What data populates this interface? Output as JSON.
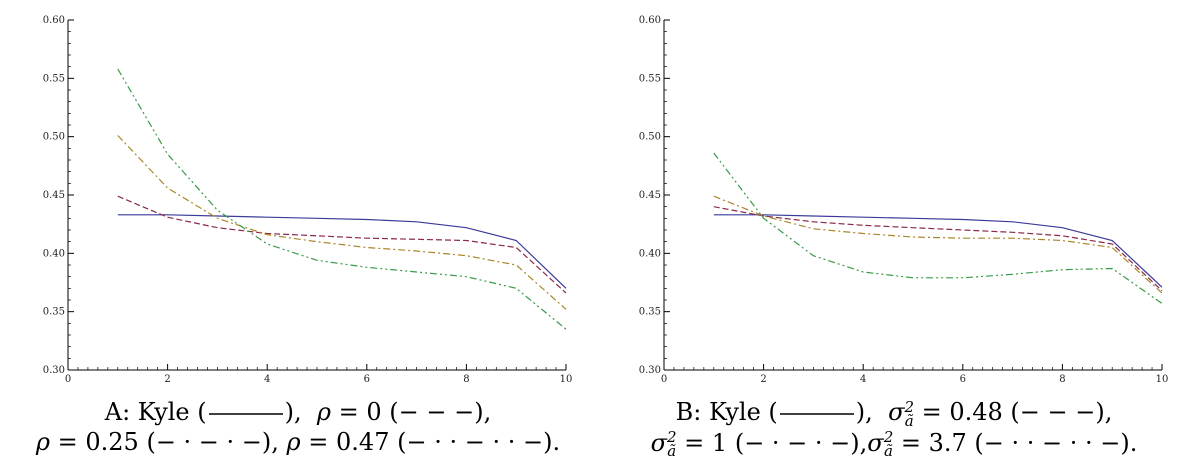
{
  "chart_data": [
    {
      "type": "line",
      "panel": "A",
      "xlim": [
        0,
        10
      ],
      "ylim": [
        0.3,
        0.6
      ],
      "xticks": [
        0,
        2,
        4,
        6,
        8,
        10
      ],
      "yticks": [
        0.3,
        0.35,
        0.4,
        0.45,
        0.5,
        0.55,
        0.6
      ],
      "xtick_labels": [
        "0",
        "2",
        "4",
        "6",
        "8",
        "10"
      ],
      "ytick_labels": [
        "0.30",
        "0.35",
        "0.40",
        "0.45",
        "0.50",
        "0.55",
        "0.60"
      ],
      "x": [
        1,
        2,
        3,
        4,
        5,
        6,
        7,
        8,
        9,
        10
      ],
      "series": [
        {
          "style": "solid",
          "color": "#3b3b9a",
          "values": [
            0.433,
            0.433,
            0.432,
            0.431,
            0.43,
            0.429,
            0.427,
            0.422,
            0.411,
            0.37
          ]
        },
        {
          "style": "dashed",
          "color": "#8b2a4a",
          "values": [
            0.449,
            0.431,
            0.422,
            0.417,
            0.415,
            0.413,
            0.412,
            0.411,
            0.405,
            0.366
          ]
        },
        {
          "style": "dashdot",
          "color": "#a8862a",
          "values": [
            0.501,
            0.456,
            0.43,
            0.416,
            0.41,
            0.405,
            0.402,
            0.398,
            0.39,
            0.352
          ]
        },
        {
          "style": "dashdotdot",
          "color": "#3a9a4a",
          "values": [
            0.558,
            0.485,
            0.437,
            0.408,
            0.394,
            0.388,
            0.384,
            0.38,
            0.37,
            0.335
          ]
        }
      ],
      "caption": {
        "prefix": "A: Kyle (",
        "kyle_close": "),",
        "rho_symbol": "ρ",
        "s1_value": " = 0 (",
        "s1_pattern": "− − −",
        "s1_close": "),",
        "s2_value": " = 0.25 (",
        "s2_pattern": "− · − · −",
        "s2_close": "), ",
        "s3_value": " = 0.47 (",
        "s3_pattern": "− · · − · · −",
        "s3_close": ")."
      }
    },
    {
      "type": "line",
      "panel": "B",
      "xlim": [
        0,
        10
      ],
      "ylim": [
        0.3,
        0.6
      ],
      "xticks": [
        0,
        2,
        4,
        6,
        8,
        10
      ],
      "yticks": [
        0.3,
        0.35,
        0.4,
        0.45,
        0.5,
        0.55,
        0.6
      ],
      "xtick_labels": [
        "0",
        "2",
        "4",
        "6",
        "8",
        "10"
      ],
      "ytick_labels": [
        "0.30",
        "0.35",
        "0.40",
        "0.45",
        "0.50",
        "0.55",
        "0.60"
      ],
      "x": [
        1,
        2,
        3,
        4,
        5,
        6,
        7,
        8,
        9,
        10
      ],
      "series": [
        {
          "style": "solid",
          "color": "#3b3b9a",
          "values": [
            0.433,
            0.433,
            0.432,
            0.431,
            0.43,
            0.429,
            0.427,
            0.422,
            0.411,
            0.371
          ]
        },
        {
          "style": "dashed",
          "color": "#8b2a4a",
          "values": [
            0.44,
            0.432,
            0.427,
            0.424,
            0.422,
            0.42,
            0.418,
            0.415,
            0.408,
            0.368
          ]
        },
        {
          "style": "dashdot",
          "color": "#a8862a",
          "values": [
            0.449,
            0.432,
            0.421,
            0.417,
            0.414,
            0.413,
            0.413,
            0.411,
            0.405,
            0.366
          ]
        },
        {
          "style": "dashdotdot",
          "color": "#3a9a4a",
          "values": [
            0.486,
            0.43,
            0.398,
            0.384,
            0.379,
            0.379,
            0.382,
            0.386,
            0.387,
            0.357
          ]
        }
      ],
      "caption": {
        "prefix": "B: Kyle (",
        "kyle_close": "),",
        "sigma_symbol": "σ",
        "sigma_sup": "2",
        "sigma_sub": "ã",
        "s1_value": " = 0.48 (",
        "s1_pattern": "− − −",
        "s1_close": "),",
        "s2_value": " = 1 (",
        "s2_pattern": "− · − · −",
        "s2_close": "),",
        "s3_value": " = 3.7 (",
        "s3_pattern": "− · · − · · −",
        "s3_close": ")."
      }
    }
  ]
}
